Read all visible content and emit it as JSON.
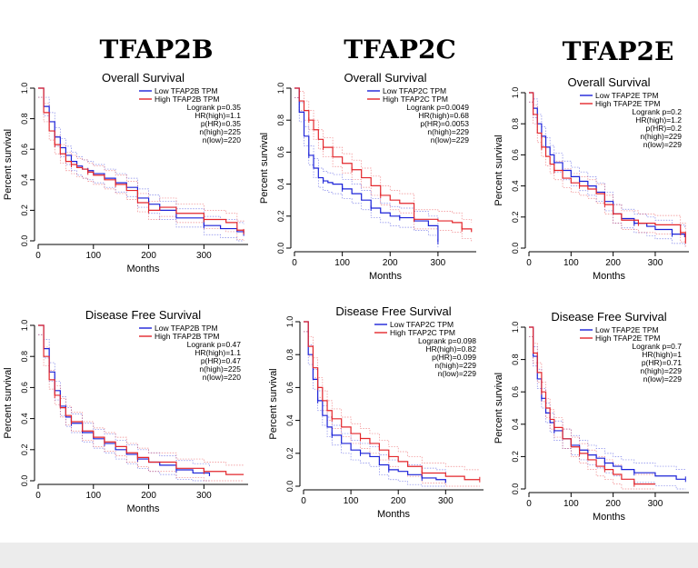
{
  "column_headers": [
    "TFAP2B",
    "TFAP2C",
    "TFAP2E"
  ],
  "colors": {
    "low": "#1b22d8",
    "high": "#e3262b",
    "axis": "#000000"
  },
  "chart_data": [
    {
      "type": "line",
      "title": "Overall Survival",
      "xlabel": "Months",
      "ylabel": "Percent survival",
      "xlim": [
        0,
        380
      ],
      "ylim": [
        0,
        1
      ],
      "xticks": [
        "0",
        "100",
        "200",
        "300"
      ],
      "yticks": [
        "0.0",
        "0.2",
        "0.4",
        "0.6",
        "0.8",
        "1.0"
      ],
      "legend": [
        "Low TFAP2B TPM",
        "High TFAP2B TPM"
      ],
      "stats": [
        "Logrank p=0.35",
        "HR(high)=1.1",
        "p(HR)=0.35",
        "n(high)=225",
        "n(low)=220"
      ],
      "series": [
        {
          "name": "Low TFAP2B TPM",
          "color": "low",
          "x": [
            0,
            10,
            20,
            30,
            40,
            50,
            60,
            70,
            80,
            90,
            100,
            120,
            140,
            160,
            180,
            200,
            220,
            250,
            300,
            330,
            360,
            372
          ],
          "y": [
            1.0,
            0.88,
            0.78,
            0.68,
            0.61,
            0.56,
            0.52,
            0.49,
            0.47,
            0.46,
            0.44,
            0.41,
            0.38,
            0.35,
            0.28,
            0.24,
            0.2,
            0.15,
            0.1,
            0.08,
            0.06,
            0.05
          ]
        },
        {
          "name": "High TFAP2B TPM",
          "color": "high",
          "x": [
            0,
            10,
            20,
            30,
            40,
            50,
            60,
            70,
            80,
            90,
            100,
            120,
            140,
            160,
            180,
            200,
            220,
            250,
            300,
            340,
            360,
            372
          ],
          "y": [
            1.0,
            0.84,
            0.72,
            0.63,
            0.57,
            0.52,
            0.5,
            0.48,
            0.47,
            0.45,
            0.43,
            0.4,
            0.37,
            0.33,
            0.25,
            0.2,
            0.22,
            0.18,
            0.14,
            0.12,
            0.07,
            0.06
          ]
        }
      ]
    },
    {
      "type": "line",
      "title": "Overall Survival",
      "xlabel": "Months",
      "ylabel": "Percent survival",
      "xlim": [
        0,
        380
      ],
      "ylim": [
        0,
        1
      ],
      "xticks": [
        "0",
        "100",
        "200",
        "300"
      ],
      "yticks": [
        "0.0",
        "0.2",
        "0.4",
        "0.6",
        "0.8",
        "1.0"
      ],
      "legend": [
        "Low TFAP2C TPM",
        "High TFAP2C TPM"
      ],
      "stats": [
        "Logrank p=0.0049",
        "HR(high)=0.68",
        "p(HR)=0.0053",
        "n(high)=229",
        "n(low)=229"
      ],
      "series": [
        {
          "name": "Low TFAP2C TPM",
          "color": "low",
          "x": [
            0,
            10,
            20,
            30,
            40,
            50,
            60,
            70,
            80,
            100,
            120,
            140,
            160,
            180,
            200,
            220,
            250,
            280,
            300
          ],
          "y": [
            1.0,
            0.85,
            0.7,
            0.58,
            0.5,
            0.44,
            0.42,
            0.41,
            0.4,
            0.37,
            0.34,
            0.3,
            0.25,
            0.22,
            0.2,
            0.19,
            0.17,
            0.14,
            0.04
          ]
        },
        {
          "name": "High TFAP2C TPM",
          "color": "high",
          "x": [
            0,
            10,
            20,
            30,
            40,
            50,
            60,
            80,
            100,
            120,
            140,
            160,
            180,
            200,
            220,
            250,
            300,
            330,
            350,
            370
          ],
          "y": [
            1.0,
            0.92,
            0.86,
            0.8,
            0.74,
            0.68,
            0.63,
            0.57,
            0.53,
            0.49,
            0.44,
            0.39,
            0.33,
            0.3,
            0.28,
            0.18,
            0.17,
            0.16,
            0.12,
            0.1
          ]
        }
      ]
    },
    {
      "type": "line",
      "title": "Overall Survival",
      "xlabel": "Months",
      "ylabel": "Percent survival",
      "xlim": [
        0,
        380
      ],
      "ylim": [
        0,
        1
      ],
      "xticks": [
        "0",
        "100",
        "200",
        "300"
      ],
      "yticks": [
        "0.0",
        "0.2",
        "0.4",
        "0.6",
        "0.8",
        "1.0"
      ],
      "legend": [
        "Low TFAP2E TPM",
        "High TFAP2E TPM"
      ],
      "stats": [
        "Logrank p=0.2",
        "HR(high)=1.2",
        "p(HR)=0.2",
        "n(high)=229",
        "n(low)=229"
      ],
      "series": [
        {
          "name": "Low TFAP2E TPM",
          "color": "low",
          "x": [
            0,
            10,
            20,
            30,
            40,
            50,
            60,
            80,
            100,
            120,
            140,
            160,
            180,
            200,
            220,
            250,
            280,
            300,
            340,
            370
          ],
          "y": [
            1.0,
            0.9,
            0.8,
            0.72,
            0.65,
            0.6,
            0.55,
            0.5,
            0.46,
            0.43,
            0.4,
            0.36,
            0.3,
            0.22,
            0.19,
            0.16,
            0.14,
            0.12,
            0.09,
            0.07
          ]
        },
        {
          "name": "High TFAP2E TPM",
          "color": "high",
          "x": [
            0,
            10,
            20,
            30,
            40,
            50,
            60,
            80,
            100,
            120,
            140,
            160,
            180,
            200,
            220,
            260,
            300,
            340,
            360,
            372
          ],
          "y": [
            1.0,
            0.86,
            0.74,
            0.65,
            0.59,
            0.54,
            0.5,
            0.45,
            0.42,
            0.4,
            0.38,
            0.35,
            0.28,
            0.22,
            0.18,
            0.16,
            0.15,
            0.15,
            0.1,
            0.03
          ]
        }
      ]
    },
    {
      "type": "line",
      "title": "Disease Free Survival",
      "xlabel": "Months",
      "ylabel": "Percent survival",
      "xlim": [
        0,
        380
      ],
      "ylim": [
        0,
        1
      ],
      "xticks": [
        "0",
        "100",
        "200",
        "300"
      ],
      "yticks": [
        "0.0",
        "0.2",
        "0.4",
        "0.6",
        "0.8",
        "1.0"
      ],
      "legend": [
        "Low TFAP2B TPM",
        "High TFAP2B TPM"
      ],
      "stats": [
        "Logrank p=0.47",
        "HR(high)=1.1",
        "p(HR)=0.47",
        "n(high)=225",
        "n(low)=220"
      ],
      "series": [
        {
          "name": "Low TFAP2B TPM",
          "color": "low",
          "x": [
            0,
            10,
            20,
            30,
            40,
            50,
            60,
            80,
            100,
            120,
            140,
            160,
            180,
            200,
            220,
            250,
            280,
            310
          ],
          "y": [
            1.0,
            0.85,
            0.7,
            0.58,
            0.48,
            0.41,
            0.37,
            0.31,
            0.27,
            0.24,
            0.2,
            0.17,
            0.14,
            0.12,
            0.1,
            0.07,
            0.05,
            0.03
          ]
        },
        {
          "name": "High TFAP2B TPM",
          "color": "high",
          "x": [
            0,
            10,
            20,
            30,
            40,
            50,
            60,
            80,
            100,
            120,
            140,
            160,
            180,
            200,
            250,
            300,
            340,
            372
          ],
          "y": [
            1.0,
            0.8,
            0.65,
            0.55,
            0.47,
            0.42,
            0.38,
            0.32,
            0.28,
            0.25,
            0.22,
            0.18,
            0.15,
            0.12,
            0.08,
            0.06,
            0.04,
            0.04
          ]
        }
      ]
    },
    {
      "type": "line",
      "title": "Disease Free Survival",
      "xlabel": "Months",
      "ylabel": "Percent survival",
      "xlim": [
        0,
        380
      ],
      "ylim": [
        0,
        1
      ],
      "xticks": [
        "0",
        "100",
        "200",
        "300"
      ],
      "yticks": [
        "0.0",
        "0.2",
        "0.4",
        "0.6",
        "0.8",
        "1.0"
      ],
      "legend": [
        "Low TFAP2C TPM",
        "High TFAP2C TPM"
      ],
      "stats": [
        "Logrank p=0.098",
        "HR(high)=0.82",
        "p(HR)=0.099",
        "n(high)=229",
        "n(low)=229"
      ],
      "series": [
        {
          "name": "Low TFAP2C TPM",
          "color": "low",
          "x": [
            0,
            10,
            20,
            30,
            40,
            50,
            60,
            80,
            100,
            120,
            140,
            160,
            180,
            200,
            220,
            250,
            280,
            300
          ],
          "y": [
            1.0,
            0.8,
            0.65,
            0.52,
            0.43,
            0.36,
            0.31,
            0.26,
            0.22,
            0.2,
            0.18,
            0.13,
            0.1,
            0.09,
            0.07,
            0.05,
            0.04,
            0.02
          ]
        },
        {
          "name": "High TFAP2C TPM",
          "color": "high",
          "x": [
            0,
            10,
            20,
            30,
            40,
            50,
            60,
            80,
            100,
            120,
            140,
            160,
            180,
            200,
            220,
            250,
            300,
            340,
            372
          ],
          "y": [
            1.0,
            0.85,
            0.72,
            0.6,
            0.52,
            0.46,
            0.41,
            0.36,
            0.32,
            0.29,
            0.26,
            0.22,
            0.18,
            0.15,
            0.12,
            0.08,
            0.06,
            0.04,
            0.04
          ]
        }
      ]
    },
    {
      "type": "line",
      "title": "Disease Free Survival",
      "xlabel": "Months",
      "ylabel": "Percent survival",
      "xlim": [
        0,
        380
      ],
      "ylim": [
        0,
        1
      ],
      "xticks": [
        "0",
        "100",
        "200",
        "300"
      ],
      "yticks": [
        "0.0",
        "0.2",
        "0.4",
        "0.6",
        "0.8",
        "1.0"
      ],
      "legend": [
        "Low TFAP2E TPM",
        "High TFAP2E TPM"
      ],
      "stats": [
        "Logrank p=0.7",
        "HR(high)=1",
        "p(HR)=0.71",
        "n(high)=229",
        "n(low)=229"
      ],
      "series": [
        {
          "name": "Low TFAP2E TPM",
          "color": "low",
          "x": [
            0,
            10,
            20,
            30,
            40,
            50,
            60,
            80,
            100,
            120,
            140,
            160,
            180,
            200,
            220,
            250,
            300,
            350,
            372
          ],
          "y": [
            1.0,
            0.82,
            0.68,
            0.56,
            0.47,
            0.41,
            0.36,
            0.31,
            0.27,
            0.24,
            0.21,
            0.19,
            0.16,
            0.14,
            0.12,
            0.1,
            0.08,
            0.06,
            0.06
          ]
        },
        {
          "name": "High TFAP2E TPM",
          "color": "high",
          "x": [
            0,
            10,
            20,
            30,
            40,
            50,
            60,
            80,
            100,
            120,
            140,
            160,
            180,
            200,
            220,
            250,
            280,
            300
          ],
          "y": [
            1.0,
            0.84,
            0.72,
            0.6,
            0.5,
            0.43,
            0.38,
            0.31,
            0.26,
            0.22,
            0.18,
            0.14,
            0.12,
            0.09,
            0.06,
            0.03,
            0.03,
            0.03
          ]
        }
      ]
    }
  ]
}
